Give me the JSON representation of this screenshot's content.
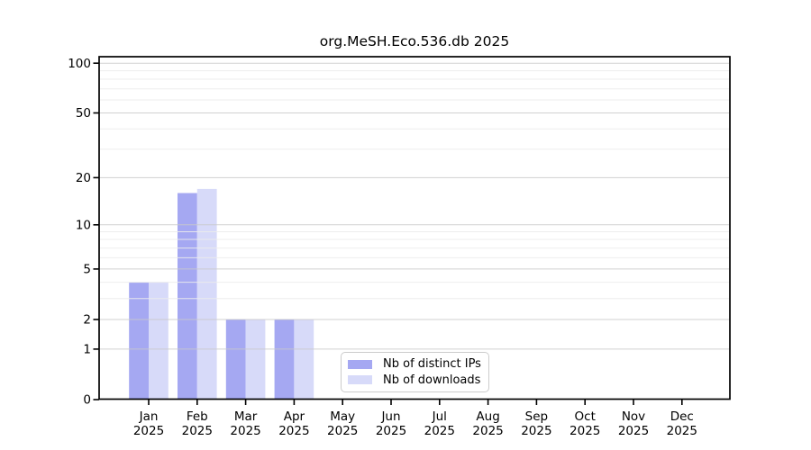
{
  "chart_data": {
    "type": "bar",
    "title": "org.MeSH.Eco.536.db 2025",
    "categories": [
      "Jan",
      "Feb",
      "Mar",
      "Apr",
      "May",
      "Jun",
      "Jul",
      "Aug",
      "Sep",
      "Oct",
      "Nov",
      "Dec"
    ],
    "category_sub_labels": [
      "2025",
      "2025",
      "2025",
      "2025",
      "2025",
      "2025",
      "2025",
      "2025",
      "2025",
      "2025",
      "2025",
      "2025"
    ],
    "year": "2025",
    "series": [
      {
        "name": "Nb of distinct IPs",
        "color": "#a5a8f2",
        "values": [
          4,
          16,
          2,
          2,
          0,
          0,
          0,
          0,
          0,
          0,
          0,
          0
        ]
      },
      {
        "name": "Nb of downloads",
        "color": "#d7daf9",
        "values": [
          4,
          17,
          2,
          2,
          0,
          0,
          0,
          0,
          0,
          0,
          0,
          0
        ]
      }
    ],
    "xlabel": "",
    "ylabel": "",
    "yscale": "symlog-log1p",
    "yticks": [
      0,
      1,
      2,
      5,
      10,
      20,
      50,
      100
    ],
    "minor_yticks": [
      3,
      4,
      6,
      7,
      8,
      9,
      30,
      40,
      60,
      70,
      80,
      90
    ],
    "ylim": [
      0,
      110
    ],
    "grid": true,
    "legend_position": "inside-bottom-center",
    "colors": {
      "major_grid": "#c9c9c9",
      "minor_grid": "#ececec",
      "axis": "#000000",
      "text": "#000000",
      "background": "#ffffff"
    }
  }
}
